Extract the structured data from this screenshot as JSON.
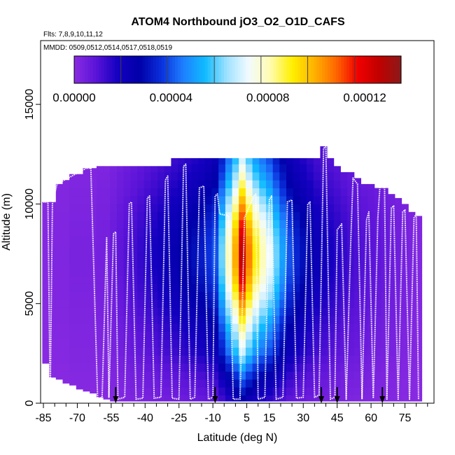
{
  "chart_data": {
    "type": "heatmap",
    "title": "ATOM4 Northbound jO3_O2_O1D_CAFS",
    "flights_label": "Flts: 7,8,9,10,11,12",
    "dates_label": "MMDD: 0509,0512,0514,0517,0518,0519",
    "xlabel": "Latitude (deg N)",
    "ylabel": "Altitude (m)",
    "xlim": [
      -87,
      87
    ],
    "ylim": [
      0,
      18000
    ],
    "x_ticks": [
      -85,
      -70,
      -55,
      -40,
      -25,
      -10,
      5,
      15,
      30,
      45,
      60,
      75
    ],
    "x_tick_labels": [
      "-85",
      "-70",
      "-55",
      "-40",
      "-25",
      "-10",
      "5",
      "15",
      "30",
      "45",
      "60",
      "75"
    ],
    "y_ticks": [
      0,
      5000,
      10000,
      15000
    ],
    "y_tick_labels": [
      "0",
      "5000",
      "10000",
      "15000"
    ],
    "colorbar": {
      "min": 0,
      "max": 0.000135,
      "ticks": [
        0,
        4e-05,
        8e-05,
        0.00012
      ],
      "tick_labels": [
        "0.00000",
        "0.00004",
        "0.00008",
        "0.00012"
      ],
      "colors": [
        "#8a2be2",
        "#5a13d8",
        "#1400c0",
        "#0000a8",
        "#0a30dc",
        "#1e7fff",
        "#0fbbff",
        "#9fe1ff",
        "#f2fbff",
        "#fffcb0",
        "#fff000",
        "#ffb300",
        "#ff6800",
        "#f20000",
        "#c00000",
        "#8b1a1a"
      ]
    },
    "columns": [
      {
        "lat": -84,
        "top": 10100,
        "base": 2000,
        "peak": 1e-06
      },
      {
        "lat": -81,
        "top": 10100,
        "base": 1300,
        "peak": 2e-06
      },
      {
        "lat": -78,
        "top": 11000,
        "base": 1200,
        "peak": 2e-06
      },
      {
        "lat": -75,
        "top": 11200,
        "base": 1000,
        "peak": 2e-06
      },
      {
        "lat": -72,
        "top": 11500,
        "base": 900,
        "peak": 3e-06
      },
      {
        "lat": -69,
        "top": 11500,
        "base": 700,
        "peak": 3e-06
      },
      {
        "lat": -66,
        "top": 11800,
        "base": 600,
        "peak": 3e-06
      },
      {
        "lat": -63,
        "top": 11800,
        "base": 500,
        "peak": 3e-06
      },
      {
        "lat": -60,
        "top": 11900,
        "base": 300,
        "peak": 4e-06
      },
      {
        "lat": -57,
        "top": 11900,
        "base": 200,
        "peak": 4e-06
      },
      {
        "lat": -54,
        "top": 11900,
        "base": 100,
        "peak": 6e-06
      },
      {
        "lat": -51,
        "top": 11900,
        "base": 100,
        "peak": 8e-06
      },
      {
        "lat": -48,
        "top": 11900,
        "base": 100,
        "peak": 1e-05
      },
      {
        "lat": -45,
        "top": 11900,
        "base": 100,
        "peak": 1.2e-05
      },
      {
        "lat": -42,
        "top": 11900,
        "base": 100,
        "peak": 1.4e-05
      },
      {
        "lat": -39,
        "top": 11900,
        "base": 100,
        "peak": 1.6e-05
      },
      {
        "lat": -36,
        "top": 11900,
        "base": 100,
        "peak": 1.8e-05
      },
      {
        "lat": -33,
        "top": 11900,
        "base": 100,
        "peak": 2e-05
      },
      {
        "lat": -30,
        "top": 11900,
        "base": 100,
        "peak": 2.2e-05
      },
      {
        "lat": -27,
        "top": 12300,
        "base": 100,
        "peak": 2.4e-05
      },
      {
        "lat": -24,
        "top": 12300,
        "base": 100,
        "peak": 2.6e-05
      },
      {
        "lat": -21,
        "top": 12300,
        "base": 100,
        "peak": 2.8e-05
      },
      {
        "lat": -18,
        "top": 12300,
        "base": 100,
        "peak": 3e-05
      },
      {
        "lat": -15,
        "top": 12300,
        "base": 100,
        "peak": 3.2e-05
      },
      {
        "lat": -12,
        "top": 12300,
        "base": 100,
        "peak": 3.6e-05
      },
      {
        "lat": -9,
        "top": 12300,
        "base": 100,
        "peak": 4e-05
      },
      {
        "lat": -6,
        "top": 12300,
        "base": 100,
        "peak": 6e-05
      },
      {
        "lat": -3,
        "top": 12300,
        "base": 100,
        "peak": 8e-05
      },
      {
        "lat": 0,
        "top": 12300,
        "base": 100,
        "peak": 0.0001
      },
      {
        "lat": 3,
        "top": 12300,
        "base": 100,
        "peak": 0.000125
      },
      {
        "lat": 6,
        "top": 12300,
        "base": 100,
        "peak": 0.000105
      },
      {
        "lat": 9,
        "top": 12300,
        "base": 100,
        "peak": 9e-05
      },
      {
        "lat": 12,
        "top": 12300,
        "base": 100,
        "peak": 8e-05
      },
      {
        "lat": 15,
        "top": 12300,
        "base": 100,
        "peak": 7.2e-05
      },
      {
        "lat": 18,
        "top": 12300,
        "base": 100,
        "peak": 6e-05
      },
      {
        "lat": 21,
        "top": 12300,
        "base": 100,
        "peak": 5e-05
      },
      {
        "lat": 24,
        "top": 12300,
        "base": 100,
        "peak": 4e-05
      },
      {
        "lat": 27,
        "top": 12300,
        "base": 100,
        "peak": 3.4e-05
      },
      {
        "lat": 30,
        "top": 12300,
        "base": 100,
        "peak": 3e-05
      },
      {
        "lat": 33,
        "top": 12300,
        "base": 100,
        "peak": 2.6e-05
      },
      {
        "lat": 36,
        "top": 12300,
        "base": 100,
        "peak": 2.2e-05
      },
      {
        "lat": 39,
        "top": 12900,
        "base": 100,
        "peak": 2e-05
      },
      {
        "lat": 42,
        "top": 12300,
        "base": 100,
        "peak": 1.8e-05
      },
      {
        "lat": 45,
        "top": 11900,
        "base": 100,
        "peak": 1.6e-05
      },
      {
        "lat": 48,
        "top": 11600,
        "base": 100,
        "peak": 1.4e-05
      },
      {
        "lat": 51,
        "top": 11600,
        "base": 100,
        "peak": 1.2e-05
      },
      {
        "lat": 54,
        "top": 11300,
        "base": 100,
        "peak": 1.1e-05
      },
      {
        "lat": 57,
        "top": 11000,
        "base": 100,
        "peak": 1e-05
      },
      {
        "lat": 60,
        "top": 11000,
        "base": 100,
        "peak": 9e-06
      },
      {
        "lat": 63,
        "top": 10800,
        "base": 100,
        "peak": 8e-06
      },
      {
        "lat": 66,
        "top": 10800,
        "base": 100,
        "peak": 7e-06
      },
      {
        "lat": 69,
        "top": 10500,
        "base": 100,
        "peak": 6e-06
      },
      {
        "lat": 72,
        "top": 10300,
        "base": 100,
        "peak": 5e-06
      },
      {
        "lat": 75,
        "top": 10000,
        "base": 100,
        "peak": 4e-06
      },
      {
        "lat": 78,
        "top": 9600,
        "base": 100,
        "peak": 3e-06
      },
      {
        "lat": 81,
        "top": 9400,
        "base": 100,
        "peak": 2e-06
      }
    ],
    "flight_track": [
      [
        -85,
        10100
      ],
      [
        -83,
        10100
      ],
      [
        -82,
        200
      ],
      [
        -81,
        10000
      ],
      [
        -79,
        11000
      ],
      [
        -66,
        11800
      ],
      [
        -64,
        11800
      ],
      [
        -61,
        200
      ],
      [
        -59,
        300
      ],
      [
        -57,
        8300
      ],
      [
        -56,
        300
      ],
      [
        -54,
        8500
      ],
      [
        -53,
        8600
      ],
      [
        -52,
        200
      ],
      [
        -49,
        300
      ],
      [
        -47,
        10000
      ],
      [
        -46,
        10100
      ],
      [
        -44,
        200
      ],
      [
        -41,
        250
      ],
      [
        -39,
        10300
      ],
      [
        -38,
        10400
      ],
      [
        -36,
        250
      ],
      [
        -33,
        300
      ],
      [
        -31,
        11200
      ],
      [
        -30,
        11400
      ],
      [
        -28,
        250
      ],
      [
        -25,
        200
      ],
      [
        -23,
        11900
      ],
      [
        -22,
        12000
      ],
      [
        -20,
        200
      ],
      [
        -18,
        300
      ],
      [
        -16,
        10800
      ],
      [
        -14,
        10900
      ],
      [
        -12,
        200
      ],
      [
        -10,
        300
      ],
      [
        -9,
        10400
      ],
      [
        -8,
        10500
      ],
      [
        -7,
        9500
      ],
      [
        -3,
        9400
      ],
      [
        -1,
        200
      ],
      [
        2,
        200
      ],
      [
        4,
        9300
      ],
      [
        8,
        10400
      ],
      [
        9,
        10500
      ],
      [
        10,
        200
      ],
      [
        13,
        300
      ],
      [
        15,
        10200
      ],
      [
        16,
        10400
      ],
      [
        18,
        200
      ],
      [
        21,
        300
      ],
      [
        23,
        10100
      ],
      [
        25,
        10200
      ],
      [
        27,
        250
      ],
      [
        30,
        300
      ],
      [
        32,
        10000
      ],
      [
        33,
        10100
      ],
      [
        35,
        300
      ],
      [
        37,
        400
      ],
      [
        39,
        12800
      ],
      [
        40,
        12900
      ],
      [
        42,
        200
      ],
      [
        44,
        300
      ],
      [
        45,
        8700
      ],
      [
        47,
        9000
      ],
      [
        49,
        200
      ],
      [
        51,
        8000
      ],
      [
        52,
        11300
      ],
      [
        54,
        11000
      ],
      [
        56,
        200
      ],
      [
        58,
        9200
      ],
      [
        59,
        9600
      ],
      [
        61,
        250
      ],
      [
        63,
        9300
      ],
      [
        64,
        11000
      ],
      [
        66,
        10800
      ],
      [
        67,
        200
      ],
      [
        69,
        9800
      ],
      [
        70,
        9900
      ],
      [
        72,
        200
      ],
      [
        74,
        9600
      ],
      [
        75,
        9700
      ],
      [
        77,
        200
      ],
      [
        79,
        9300
      ],
      [
        80,
        9500
      ],
      [
        81,
        200
      ]
    ],
    "arrow_latitudes": [
      -53,
      -9,
      38,
      45,
      65
    ]
  }
}
